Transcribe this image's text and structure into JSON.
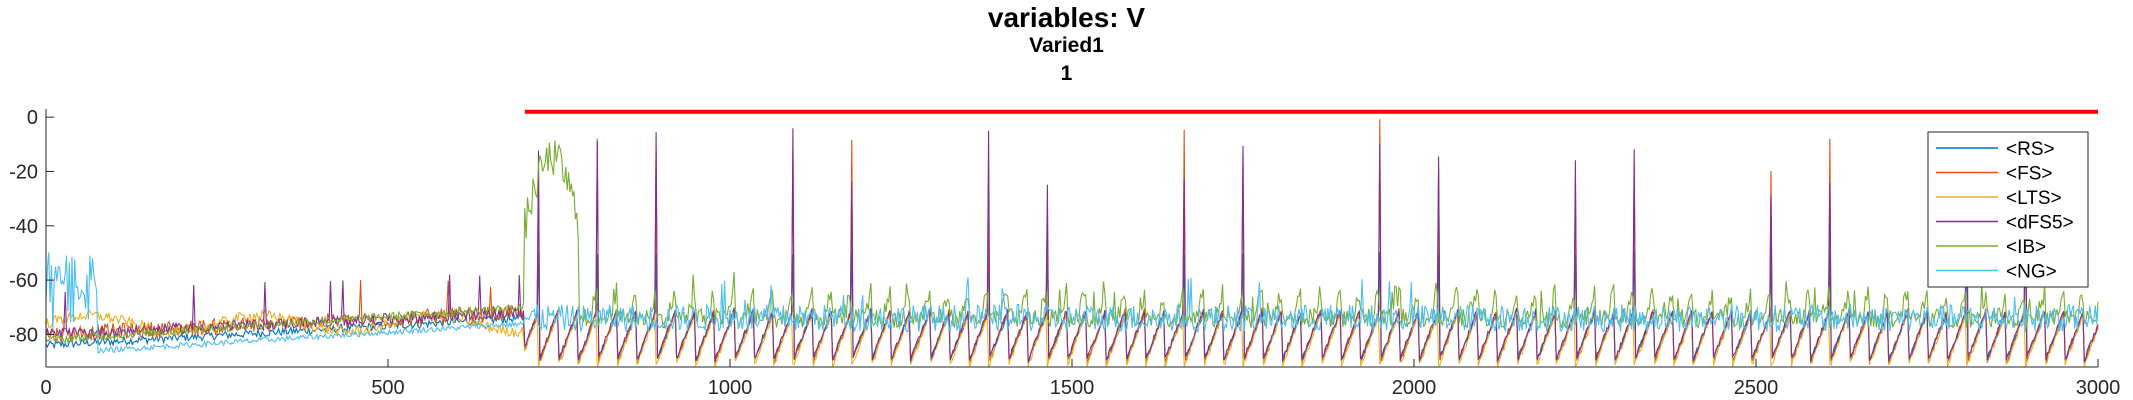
{
  "chart_data": {
    "type": "line",
    "title": "variables: V",
    "subtitle_lines": [
      "Varied1",
      "1"
    ],
    "xlabel": "",
    "ylabel": "",
    "xlim": [
      0,
      3000
    ],
    "ylim": [
      -92,
      3
    ],
    "xticks": [
      0,
      500,
      1000,
      1500,
      2000,
      2500,
      3000
    ],
    "yticks": [
      0,
      -20,
      -40,
      -60,
      -80
    ],
    "grid": false,
    "legend_position": "top-right",
    "series": [
      {
        "name": "<RS>",
        "color": "#0072BD",
        "values_summary": {
          "rest_min": -90,
          "rest_max": -70,
          "spike_peak": -20
        }
      },
      {
        "name": "<FS>",
        "color": "#D95319",
        "values_summary": {
          "rest_min": -92,
          "rest_max": -72,
          "spike_peak": 3
        }
      },
      {
        "name": "<LTS>",
        "color": "#EDB120",
        "values_summary": {
          "rest_min": -92,
          "rest_max": -70,
          "spike_peak": -60
        }
      },
      {
        "name": "<dFS5>",
        "color": "#7E2F8E",
        "values_summary": {
          "rest_min": -90,
          "rest_max": -70,
          "spike_peak": 0
        }
      },
      {
        "name": "<IB>",
        "color": "#77AC30",
        "values_summary": {
          "rest_min": -84,
          "rest_max": -62,
          "burst_peak": -12
        }
      },
      {
        "name": "<NG>",
        "color": "#4DBEEE",
        "values_summary": {
          "rest_min": -86,
          "rest_max": -42,
          "spike_peak": -42
        }
      }
    ],
    "annotation_line": {
      "x_start": 700,
      "x_end": 3000,
      "y": 2,
      "color": "#FF0000"
    },
    "spike_schedule": {
      "start": 720,
      "period": 28.6,
      "end": 3000
    }
  }
}
